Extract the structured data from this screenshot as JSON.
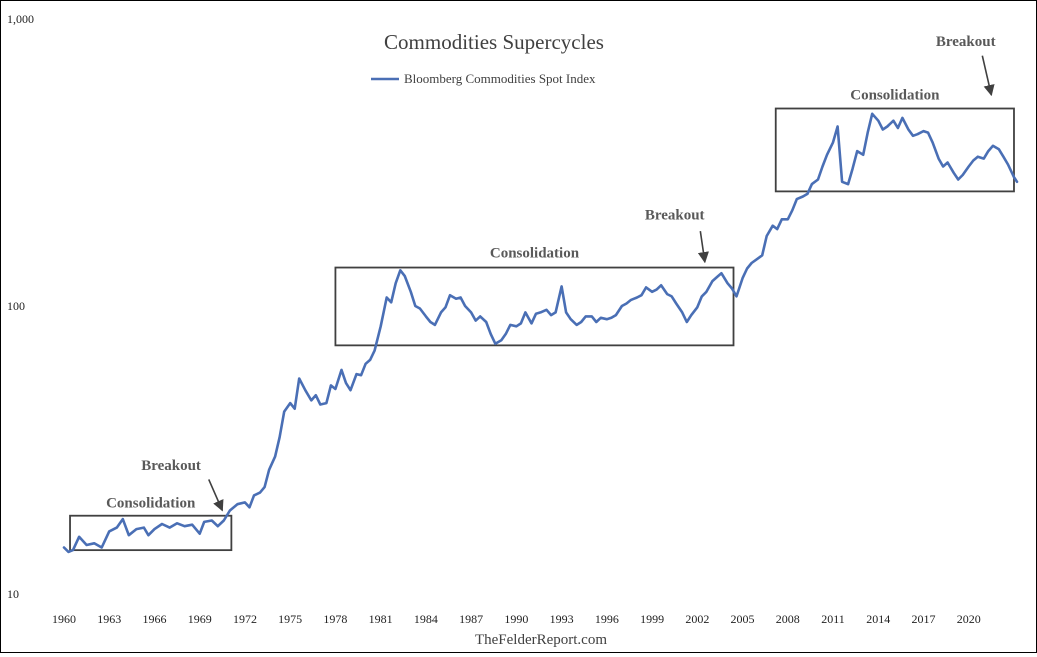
{
  "chart_data": {
    "type": "line",
    "title": "Commodities Supercycles",
    "xlabel": "",
    "ylabel": "",
    "yscale": "log",
    "ylim": [
      10,
      1000
    ],
    "xlim": [
      1960,
      2023.2
    ],
    "grid": false,
    "legend_position": "top-center",
    "y_tick_labels": [
      {
        "value": 1000,
        "label": "1,000"
      },
      {
        "value": 100,
        "label": "100"
      },
      {
        "value": 10,
        "label": "10"
      }
    ],
    "x_tick_labels": [
      "1960",
      "1963",
      "1966",
      "1969",
      "1972",
      "1975",
      "1978",
      "1981",
      "1984",
      "1987",
      "1990",
      "1993",
      "1996",
      "1999",
      "2002",
      "2005",
      "2008",
      "2011",
      "2014",
      "2017",
      "2020"
    ],
    "series": [
      {
        "name": "Bloomberg Commodities Spot Index",
        "color": "#4a6fb5",
        "points": [
          [
            1960.0,
            14.5
          ],
          [
            1960.3,
            14.0
          ],
          [
            1960.6,
            14.2
          ],
          [
            1961.0,
            15.8
          ],
          [
            1961.5,
            14.8
          ],
          [
            1962.0,
            15.0
          ],
          [
            1962.5,
            14.5
          ],
          [
            1963.0,
            16.5
          ],
          [
            1963.5,
            17.0
          ],
          [
            1963.9,
            18.2
          ],
          [
            1964.3,
            16.0
          ],
          [
            1964.8,
            16.8
          ],
          [
            1965.3,
            17.0
          ],
          [
            1965.6,
            16.0
          ],
          [
            1966.0,
            16.8
          ],
          [
            1966.5,
            17.5
          ],
          [
            1967.0,
            17.0
          ],
          [
            1967.5,
            17.6
          ],
          [
            1968.0,
            17.2
          ],
          [
            1968.5,
            17.4
          ],
          [
            1969.0,
            16.2
          ],
          [
            1969.3,
            17.8
          ],
          [
            1969.8,
            18.0
          ],
          [
            1970.2,
            17.2
          ],
          [
            1970.6,
            18.0
          ],
          [
            1971.0,
            19.5
          ],
          [
            1971.5,
            20.5
          ],
          [
            1972.0,
            20.8
          ],
          [
            1972.3,
            20.0
          ],
          [
            1972.6,
            22.0
          ],
          [
            1973.0,
            22.5
          ],
          [
            1973.3,
            23.5
          ],
          [
            1973.6,
            27.0
          ],
          [
            1974.0,
            30.0
          ],
          [
            1974.3,
            35.0
          ],
          [
            1974.6,
            43.0
          ],
          [
            1975.0,
            46.0
          ],
          [
            1975.3,
            44.0
          ],
          [
            1975.6,
            56.0
          ],
          [
            1976.0,
            51.0
          ],
          [
            1976.4,
            47.0
          ],
          [
            1976.7,
            49.0
          ],
          [
            1977.0,
            45.5
          ],
          [
            1977.4,
            46.0
          ],
          [
            1977.7,
            53.0
          ],
          [
            1978.0,
            51.5
          ],
          [
            1978.4,
            60.0
          ],
          [
            1978.7,
            54.0
          ],
          [
            1979.0,
            51.0
          ],
          [
            1979.4,
            58.0
          ],
          [
            1979.7,
            57.5
          ],
          [
            1980.0,
            63.0
          ],
          [
            1980.3,
            65.0
          ],
          [
            1980.6,
            70.0
          ],
          [
            1981.0,
            85.0
          ],
          [
            1981.4,
            107.0
          ],
          [
            1981.7,
            103.0
          ],
          [
            1982.0,
            120.0
          ],
          [
            1982.3,
            133.0
          ],
          [
            1982.6,
            127.0
          ],
          [
            1983.0,
            112.0
          ],
          [
            1983.3,
            100.0
          ],
          [
            1983.6,
            98.0
          ],
          [
            1984.0,
            92.0
          ],
          [
            1984.3,
            88.0
          ],
          [
            1984.6,
            86.0
          ],
          [
            1985.0,
            95.0
          ],
          [
            1985.3,
            99.0
          ],
          [
            1985.6,
            109.0
          ],
          [
            1986.0,
            106.0
          ],
          [
            1986.3,
            107.0
          ],
          [
            1986.6,
            100.0
          ],
          [
            1987.0,
            95.0
          ],
          [
            1987.3,
            89.0
          ],
          [
            1987.6,
            92.0
          ],
          [
            1988.0,
            88.0
          ],
          [
            1988.3,
            80.0
          ],
          [
            1988.6,
            74.0
          ],
          [
            1989.0,
            76.0
          ],
          [
            1989.3,
            80.0
          ],
          [
            1989.6,
            86.0
          ],
          [
            1990.0,
            85.0
          ],
          [
            1990.3,
            87.0
          ],
          [
            1990.6,
            95.0
          ],
          [
            1991.0,
            87.0
          ],
          [
            1991.3,
            94.0
          ],
          [
            1991.6,
            95.0
          ],
          [
            1992.0,
            97.0
          ],
          [
            1992.3,
            93.0
          ],
          [
            1992.6,
            95.0
          ],
          [
            1993.0,
            117.0
          ],
          [
            1993.3,
            95.0
          ],
          [
            1993.6,
            90.0
          ],
          [
            1994.0,
            86.0
          ],
          [
            1994.3,
            88.0
          ],
          [
            1994.6,
            92.0
          ],
          [
            1995.0,
            92.0
          ],
          [
            1995.3,
            88.0
          ],
          [
            1995.6,
            91.0
          ],
          [
            1996.0,
            90.0
          ],
          [
            1996.3,
            91.0
          ],
          [
            1996.6,
            93.0
          ],
          [
            1997.0,
            100.0
          ],
          [
            1997.3,
            102.0
          ],
          [
            1997.6,
            105.0
          ],
          [
            1998.0,
            107.0
          ],
          [
            1998.3,
            109.0
          ],
          [
            1998.6,
            116.0
          ],
          [
            1999.0,
            112.0
          ],
          [
            1999.3,
            114.0
          ],
          [
            1999.6,
            118.0
          ],
          [
            2000.0,
            110.0
          ],
          [
            2000.3,
            108.0
          ],
          [
            2000.6,
            102.0
          ],
          [
            2001.0,
            95.0
          ],
          [
            2001.3,
            88.0
          ],
          [
            2001.6,
            93.0
          ],
          [
            2002.0,
            99.0
          ],
          [
            2002.3,
            108.0
          ],
          [
            2002.6,
            112.0
          ],
          [
            2003.0,
            122.0
          ],
          [
            2003.3,
            126.0
          ],
          [
            2003.6,
            130.0
          ],
          [
            2004.0,
            120.0
          ],
          [
            2004.3,
            115.0
          ],
          [
            2004.6,
            108.0
          ],
          [
            2005.0,
            125.0
          ],
          [
            2005.3,
            135.0
          ],
          [
            2005.6,
            141.0
          ],
          [
            2006.0,
            146.0
          ],
          [
            2006.3,
            150.0
          ],
          [
            2006.6,
            175.0
          ],
          [
            2007.0,
            190.0
          ],
          [
            2007.3,
            185.0
          ],
          [
            2007.6,
            200.0
          ],
          [
            2008.0,
            200.0
          ],
          [
            2008.3,
            215.0
          ],
          [
            2008.6,
            235.0
          ],
          [
            2009.0,
            240.0
          ],
          [
            2009.3,
            245.0
          ],
          [
            2009.6,
            265.0
          ],
          [
            2010.0,
            275.0
          ],
          [
            2010.3,
            305.0
          ],
          [
            2010.6,
            335.0
          ],
          [
            2011.0,
            370.0
          ],
          [
            2011.3,
            420.0
          ],
          [
            2011.6,
            270.0
          ],
          [
            2012.0,
            265.0
          ],
          [
            2012.3,
            300.0
          ],
          [
            2012.6,
            345.0
          ],
          [
            2013.0,
            335.0
          ],
          [
            2013.3,
            400.0
          ],
          [
            2013.6,
            465.0
          ],
          [
            2014.0,
            440.0
          ],
          [
            2014.3,
            410.0
          ],
          [
            2014.6,
            420.0
          ],
          [
            2015.0,
            440.0
          ],
          [
            2015.3,
            415.0
          ],
          [
            2015.6,
            450.0
          ],
          [
            2016.0,
            410.0
          ],
          [
            2016.3,
            390.0
          ],
          [
            2016.6,
            395.0
          ],
          [
            2017.0,
            405.0
          ],
          [
            2017.3,
            400.0
          ],
          [
            2017.6,
            370.0
          ],
          [
            2018.0,
            325.0
          ],
          [
            2018.3,
            305.0
          ],
          [
            2018.6,
            315.0
          ],
          [
            2019.0,
            290.0
          ],
          [
            2019.3,
            275.0
          ],
          [
            2019.6,
            285.0
          ],
          [
            2020.0,
            305.0
          ],
          [
            2020.3,
            320.0
          ],
          [
            2020.6,
            330.0
          ],
          [
            2021.0,
            325.0
          ],
          [
            2021.3,
            345.0
          ],
          [
            2021.6,
            360.0
          ],
          [
            2022.0,
            350.0
          ],
          [
            2022.3,
            330.0
          ],
          [
            2022.6,
            310.0
          ],
          [
            2023.0,
            280.0
          ],
          [
            2023.2,
            270.0
          ]
        ]
      }
    ],
    "annotations": [
      {
        "text": "Consolidation",
        "box": {
          "x0": 1960.4,
          "x1": 1971.1,
          "y0": 14.2,
          "y1": 18.7
        }
      },
      {
        "text": "Breakout",
        "arrow_to": {
          "x": 1970.5,
          "y": 19.5
        }
      },
      {
        "text": "Consolidation",
        "box": {
          "x0": 1978.0,
          "x1": 2004.4,
          "y0": 73,
          "y1": 136
        }
      },
      {
        "text": "Breakout",
        "arrow_to": {
          "x": 2002.5,
          "y": 142
        }
      },
      {
        "text": "Consolidation",
        "box": {
          "x0": 2007.2,
          "x1": 2023.0,
          "y0": 250,
          "y1": 485
        }
      },
      {
        "text": "Breakout",
        "arrow_to": {
          "x": 2021.5,
          "y": 540
        }
      }
    ]
  },
  "source": "TheFelderReport.com"
}
